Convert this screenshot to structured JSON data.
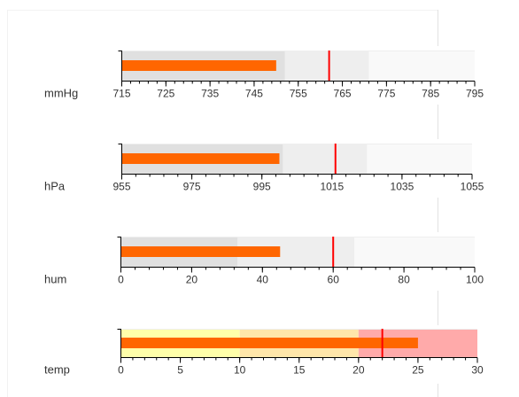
{
  "chart_data": {
    "type": "bullet",
    "charts": [
      {
        "label": "mmHg",
        "min": 715,
        "max": 795,
        "ticks": [
          715,
          725,
          735,
          745,
          755,
          765,
          775,
          785,
          795
        ],
        "ranges": [
          {
            "from": 715,
            "to": 752,
            "color": "#e0e0e0"
          },
          {
            "from": 752,
            "to": 771,
            "color": "#eeeeee"
          },
          {
            "from": 771,
            "to": 795,
            "color": "#f9f9f9"
          }
        ],
        "value": 750,
        "marker": 762
      },
      {
        "label": "hPa",
        "min": 955,
        "max": 1055,
        "ticks": [
          955,
          975,
          995,
          1015,
          1035,
          1055
        ],
        "ranges": [
          {
            "from": 955,
            "to": 1001,
            "color": "#e0e0e0"
          },
          {
            "from": 1001,
            "to": 1025,
            "color": "#eeeeee"
          },
          {
            "from": 1025,
            "to": 1055,
            "color": "#f9f9f9"
          }
        ],
        "value": 1000,
        "marker": 1016
      },
      {
        "label": "hum",
        "min": 0,
        "max": 100,
        "ticks": [
          0,
          20,
          40,
          60,
          80,
          100
        ],
        "ranges": [
          {
            "from": 0,
            "to": 33,
            "color": "#e0e0e0"
          },
          {
            "from": 33,
            "to": 66,
            "color": "#eeeeee"
          },
          {
            "from": 66,
            "to": 100,
            "color": "#f9f9f9"
          }
        ],
        "value": 45,
        "marker": 60
      },
      {
        "label": "temp",
        "min": 0,
        "max": 30,
        "ticks": [
          0,
          5,
          10,
          15,
          20,
          25,
          30
        ],
        "ranges": [
          {
            "from": 0,
            "to": 10,
            "color": "#ffffaa"
          },
          {
            "from": 10,
            "to": 20,
            "color": "#ffe6aa"
          },
          {
            "from": 20,
            "to": 30,
            "color": "#ffaaaa"
          }
        ],
        "value": 25,
        "marker": 22
      }
    ],
    "bar_color": "#ff6600",
    "marker_color": "#ff0000"
  }
}
